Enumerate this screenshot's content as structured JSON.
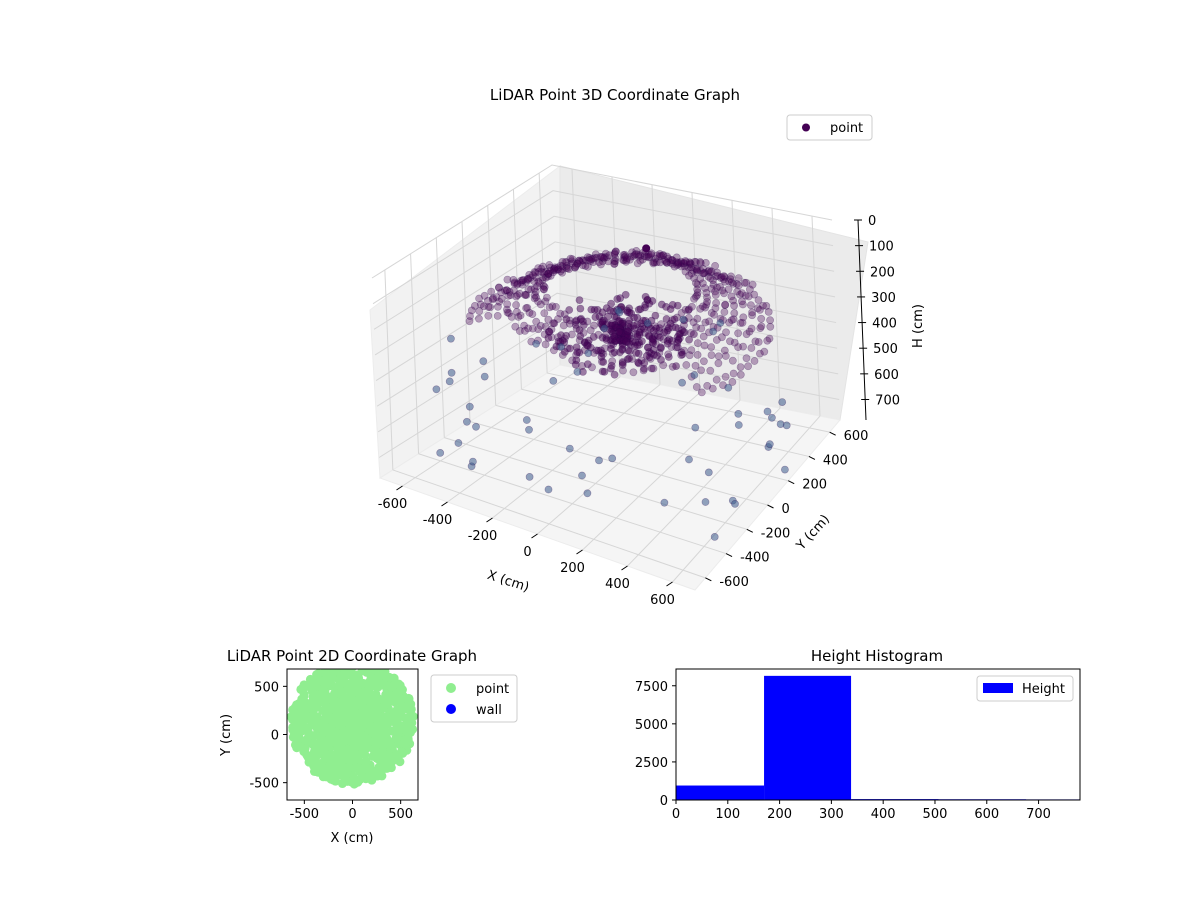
{
  "chart_data": [
    {
      "type": "scatter",
      "subtype": "3d",
      "title": "LiDAR Point 3D Coordinate Graph",
      "xlabel": "X (cm)",
      "ylabel": "Y (cm)",
      "zlabel": "H (cm)",
      "xlim": [
        -700,
        700
      ],
      "ylim": [
        -700,
        700
      ],
      "zlim": [
        0,
        780
      ],
      "z_inverted": true,
      "xticks": [
        -600,
        -400,
        -200,
        0,
        200,
        400,
        600
      ],
      "yticks": [
        -600,
        -400,
        -200,
        0,
        200,
        400,
        600
      ],
      "zticks": [
        0,
        100,
        200,
        300,
        400,
        500,
        600,
        700
      ],
      "legend": {
        "placement": "top-right",
        "entries": [
          "point"
        ]
      },
      "series": [
        {
          "name": "point",
          "color": "#440154"
        }
      ],
      "grid": true
    },
    {
      "type": "scatter",
      "title": "LiDAR Point 2D Coordinate Graph",
      "xlabel": "X (cm)",
      "ylabel": "Y (cm)",
      "xlim": [
        -680,
        680
      ],
      "ylim": [
        -680,
        680
      ],
      "xticks": [
        -500,
        0,
        500
      ],
      "yticks": [
        -500,
        0,
        500
      ],
      "legend": {
        "placement": "outside-right",
        "entries": [
          "point",
          "wall"
        ]
      },
      "series": [
        {
          "name": "point",
          "color": "#90ee90"
        },
        {
          "name": "wall",
          "color": "#0000ff"
        }
      ]
    },
    {
      "type": "bar",
      "subtype": "histogram",
      "title": "Height Histogram",
      "xlim": [
        0,
        780
      ],
      "ylim": [
        0,
        8600
      ],
      "xticks": [
        0,
        100,
        200,
        300,
        400,
        500,
        600,
        700
      ],
      "yticks": [
        0,
        2500,
        5000,
        7500
      ],
      "bins": [
        {
          "x0": 0,
          "x1": 170,
          "value": 950
        },
        {
          "x0": 170,
          "x1": 338,
          "value": 8150
        },
        {
          "x0": 338,
          "x1": 507,
          "value": 60
        },
        {
          "x0": 507,
          "x1": 676,
          "value": 50
        },
        {
          "x0": 676,
          "x1": 845,
          "value": 40
        }
      ],
      "legend": {
        "placement": "top-right",
        "entries": [
          "Height"
        ]
      },
      "series": [
        {
          "name": "Height",
          "color": "#0000ff"
        }
      ]
    }
  ]
}
